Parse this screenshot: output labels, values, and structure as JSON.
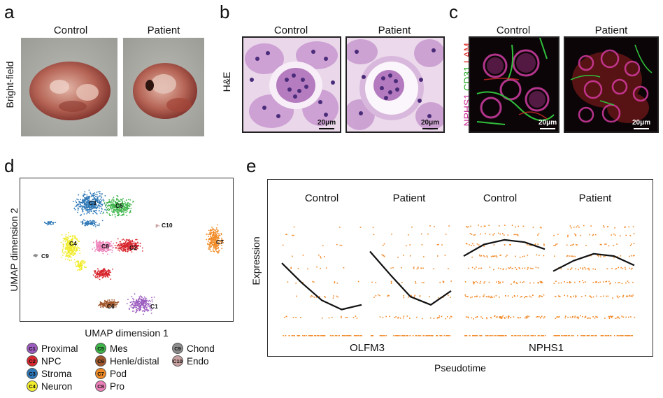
{
  "panels": {
    "a": {
      "letter": "a",
      "col_labels": [
        "Control",
        "Patient"
      ],
      "row_label": "Bright-field"
    },
    "b": {
      "letter": "b",
      "col_labels": [
        "Control",
        "Patient"
      ],
      "row_label": "H&E",
      "scale_bars": [
        "20μm",
        "20μm"
      ]
    },
    "c": {
      "letter": "c",
      "col_labels": [
        "Control",
        "Patient"
      ],
      "row_label_parts": [
        {
          "text": "NPHS1",
          "color": "#cc3399"
        },
        {
          "text": "CD31",
          "color": "#22aa22"
        },
        {
          "text": "LAM",
          "color": "#dd2222"
        }
      ],
      "scale_bars": [
        "20μm",
        "20μm"
      ]
    },
    "d": {
      "letter": "d",
      "xlabel": "UMAP dimension 1",
      "ylabel": "UMAP dimension 2",
      "clusters": [
        {
          "id": "C1",
          "name": "Proximal",
          "color": "#9b5bbf"
        },
        {
          "id": "C2",
          "name": "NPC",
          "color": "#d8262e"
        },
        {
          "id": "C3",
          "name": "Stroma",
          "color": "#2e78b7"
        },
        {
          "id": "C4",
          "name": "Neuron",
          "color": "#f1ec2c"
        },
        {
          "id": "C5",
          "name": "Mes",
          "color": "#3db549"
        },
        {
          "id": "C6",
          "name": "Henle/distal",
          "color": "#a0562a"
        },
        {
          "id": "C7",
          "name": "Pod",
          "color": "#f08a24"
        },
        {
          "id": "C8",
          "name": "Pro",
          "color": "#ec7fb8"
        },
        {
          "id": "C9",
          "name": "Chond",
          "color": "#8c8c8c"
        },
        {
          "id": "C10",
          "name": "Endo",
          "color": "#c9a0a0"
        }
      ]
    },
    "e": {
      "letter": "e",
      "xlabel": "Pseudotime",
      "ylabel": "Expression",
      "group_labels": [
        "Control",
        "Patient",
        "Control",
        "Patient"
      ],
      "gene_labels": [
        "OLFM3",
        "NPHS1"
      ],
      "point_color": "#f28a2a"
    }
  },
  "chart_data": [
    {
      "type": "scatter",
      "title": "",
      "xlabel": "UMAP dimension 1",
      "ylabel": "UMAP dimension 2",
      "series": [
        {
          "name": "C1",
          "label": "Proximal"
        },
        {
          "name": "C2",
          "label": "NPC"
        },
        {
          "name": "C3",
          "label": "Stroma"
        },
        {
          "name": "C4",
          "label": "Neuron"
        },
        {
          "name": "C5",
          "label": "Mes"
        },
        {
          "name": "C6",
          "label": "Henle/distal"
        },
        {
          "name": "C7",
          "label": "Pod"
        },
        {
          "name": "C8",
          "label": "Pro"
        },
        {
          "name": "C9",
          "label": "Chond"
        },
        {
          "name": "C10",
          "label": "Endo"
        }
      ],
      "grid": false,
      "legend": "bottom"
    },
    {
      "type": "scatter",
      "xlabel": "Pseudotime",
      "ylabel": "Expression",
      "facets": [
        {
          "gene": "OLFM3",
          "group": "Control",
          "trend": [
            0.62,
            0.45,
            0.3,
            0.22,
            0.26
          ]
        },
        {
          "gene": "OLFM3",
          "group": "Patient",
          "trend": [
            0.72,
            0.52,
            0.33,
            0.26,
            0.38
          ]
        },
        {
          "gene": "NPHS1",
          "group": "Control",
          "trend": [
            0.68,
            0.78,
            0.82,
            0.8,
            0.74
          ]
        },
        {
          "gene": "NPHS1",
          "group": "Patient",
          "trend": [
            0.55,
            0.64,
            0.7,
            0.68,
            0.6
          ]
        }
      ],
      "grid": false
    }
  ]
}
